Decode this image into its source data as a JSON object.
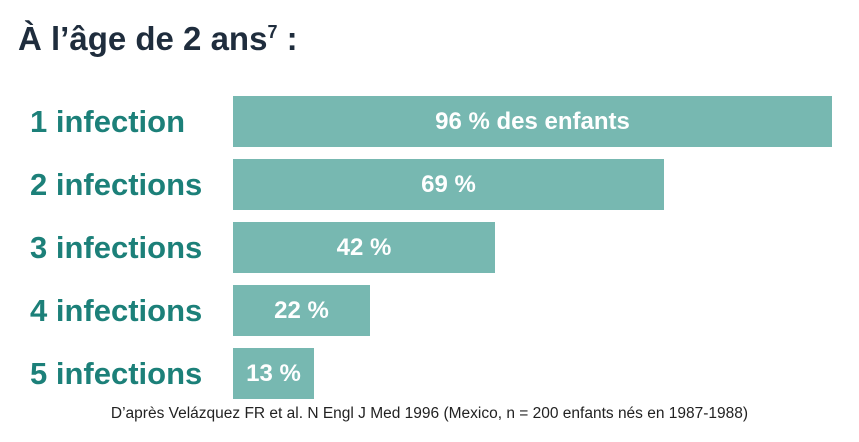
{
  "header": {
    "title": "À l’âge de 2 ans",
    "title_superscript": "7",
    "title_suffix": " :"
  },
  "chart_data": {
    "type": "bar",
    "orientation": "horizontal",
    "categories": [
      "1 infection",
      "2 infections",
      "3 infections",
      "4 infections",
      "5 infections"
    ],
    "values": [
      96,
      69,
      42,
      22,
      13
    ],
    "data_labels": [
      "96 % des enfants",
      "69 %",
      "42 %",
      "22 %",
      "13 %"
    ],
    "xlim": [
      0,
      96
    ],
    "grid": false,
    "legend": "none"
  },
  "footnote": "D’après Velázquez FR et al. N Engl J Med 1996  (Mexico, n = 200 enfants nés en 1987-1988)",
  "colors": {
    "bar": "#77b8b1",
    "category_text": "#1c8079",
    "title_text": "#1f2d3d",
    "value_text": "#ffffff"
  }
}
